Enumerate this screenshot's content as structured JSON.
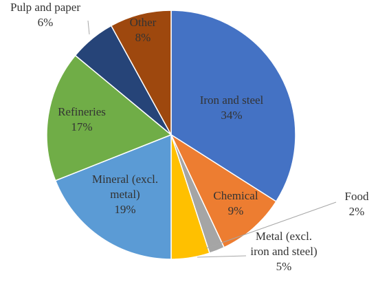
{
  "chart_data": {
    "type": "pie",
    "title": "",
    "slices": [
      {
        "label": "Iron and steel",
        "value": 34,
        "display": "34%",
        "color": "#4472c4"
      },
      {
        "label": "Chemical",
        "value": 9,
        "display": "9%",
        "color": "#ed7d31"
      },
      {
        "label": "Food",
        "value": 2,
        "display": "2%",
        "color": "#a5a5a5"
      },
      {
        "label": "Metal (excl. iron and steel)",
        "value": 5,
        "display": "5%",
        "color": "#ffc000"
      },
      {
        "label": "Mineral (excl. metal)",
        "value": 19,
        "display": "19%",
        "color": "#5b9bd5"
      },
      {
        "label": "Refineries",
        "value": 17,
        "display": "17%",
        "color": "#70ad47"
      },
      {
        "label": "Pulp and paper",
        "value": 6,
        "display": "6%",
        "color": "#264478"
      },
      {
        "label": "Other",
        "value": 8,
        "display": "8%",
        "color": "#9e480e"
      }
    ],
    "start_angle": "12 o'clock",
    "direction": "clockwise",
    "legend": "none",
    "data_labels": "category name and percentage"
  }
}
